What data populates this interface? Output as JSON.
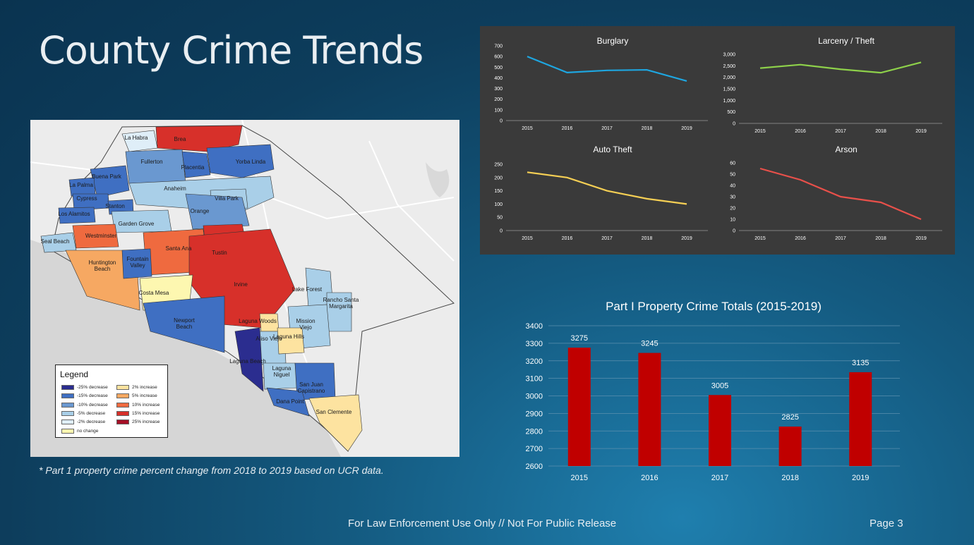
{
  "slide": {
    "title": "County Crime Trends",
    "footnote": "* Part 1 property crime percent change from 2018 to 2019 based on UCR data.",
    "footer_text": "For Law Enforcement Use Only // Not For Public Release",
    "page_label": "Page 3"
  },
  "map": {
    "legend_title": "Legend",
    "legend_items": [
      {
        "label": "-25% decrease",
        "color": "#2b2d8f"
      },
      {
        "label": "2% increase",
        "color": "#fde3a0"
      },
      {
        "label": "-15% decrease",
        "color": "#3f6fc2"
      },
      {
        "label": "5% increase",
        "color": "#f6a862"
      },
      {
        "label": "-10% decrease",
        "color": "#6a98d0"
      },
      {
        "label": "10% increase",
        "color": "#ef6a3f"
      },
      {
        "label": "-5% decrease",
        "color": "#a9cfe8"
      },
      {
        "label": "15% increase",
        "color": "#d7302a"
      },
      {
        "label": "-2% decrease",
        "color": "#dfeef8"
      },
      {
        "label": "25% increase",
        "color": "#a50f26"
      },
      {
        "label": "no change",
        "color": "#fdf7b0"
      }
    ],
    "cities": [
      "La Habra",
      "Brea",
      "Fullerton",
      "Placentia",
      "Yorba Linda",
      "Buena Park",
      "La Palma",
      "Anaheim",
      "Cypress",
      "Villa Park",
      "Stanton",
      "Orange",
      "Los Alamitos",
      "Garden Grove",
      "Westminster",
      "Seal Beach",
      "Santa Ana",
      "Tustin",
      "Huntington Beach",
      "Fountain Valley",
      "Irvine",
      "Costa Mesa",
      "Lake Forest",
      "Rancho Santa Margarita",
      "Newport Beach",
      "Laguna Woods",
      "Mission Viejo",
      "Aliso Viejo",
      "Laguna Hills",
      "Laguna Beach",
      "Laguna Niguel",
      "San Juan Capistrano",
      "Dana Point",
      "San Clemente"
    ]
  },
  "chart_data": [
    {
      "type": "line",
      "title": "Burglary",
      "x": [
        "2015",
        "2016",
        "2017",
        "2018",
        "2019"
      ],
      "series": [
        {
          "values": [
            600,
            450,
            470,
            475,
            370
          ],
          "color": "#1ea6e0"
        }
      ],
      "ylim": [
        0,
        700
      ],
      "yticks": [
        "0",
        "100",
        "200",
        "300",
        "400",
        "500",
        "600",
        "700"
      ]
    },
    {
      "type": "line",
      "title": "Larceny / Theft",
      "x": [
        "2015",
        "2016",
        "2017",
        "2018",
        "2019"
      ],
      "series": [
        {
          "values": [
            2400,
            2550,
            2350,
            2200,
            2650
          ],
          "color": "#8ed14a"
        }
      ],
      "ylim": [
        0,
        3000
      ],
      "yticks": [
        "0",
        "500",
        "1,000",
        "1,500",
        "2,000",
        "2,500",
        "3,000"
      ]
    },
    {
      "type": "line",
      "title": "Auto Theft",
      "x": [
        "2015",
        "2016",
        "2017",
        "2018",
        "2019"
      ],
      "series": [
        {
          "values": [
            220,
            200,
            150,
            120,
            100
          ],
          "color": "#f5cf54"
        }
      ],
      "ylim": [
        0,
        250
      ],
      "yticks": [
        "0",
        "50",
        "100",
        "150",
        "200",
        "250"
      ]
    },
    {
      "type": "line",
      "title": "Arson",
      "x": [
        "2015",
        "2016",
        "2017",
        "2018",
        "2019"
      ],
      "series": [
        {
          "values": [
            55,
            45,
            30,
            25,
            10
          ],
          "color": "#e8504a"
        }
      ],
      "ylim": [
        0,
        60
      ],
      "yticks": [
        "0",
        "10",
        "20",
        "30",
        "40",
        "50",
        "60"
      ]
    },
    {
      "type": "bar",
      "title": "Part I Property Crime Totals (2015-2019)",
      "categories": [
        "2015",
        "2016",
        "2017",
        "2018",
        "2019"
      ],
      "values": [
        3275,
        3245,
        3005,
        2825,
        3135
      ],
      "ylim": [
        2600,
        3400
      ],
      "yticks": [
        "2600",
        "2700",
        "2800",
        "2900",
        "3000",
        "3100",
        "3200",
        "3300",
        "3400"
      ],
      "color": "#c00000",
      "grid": true
    }
  ]
}
